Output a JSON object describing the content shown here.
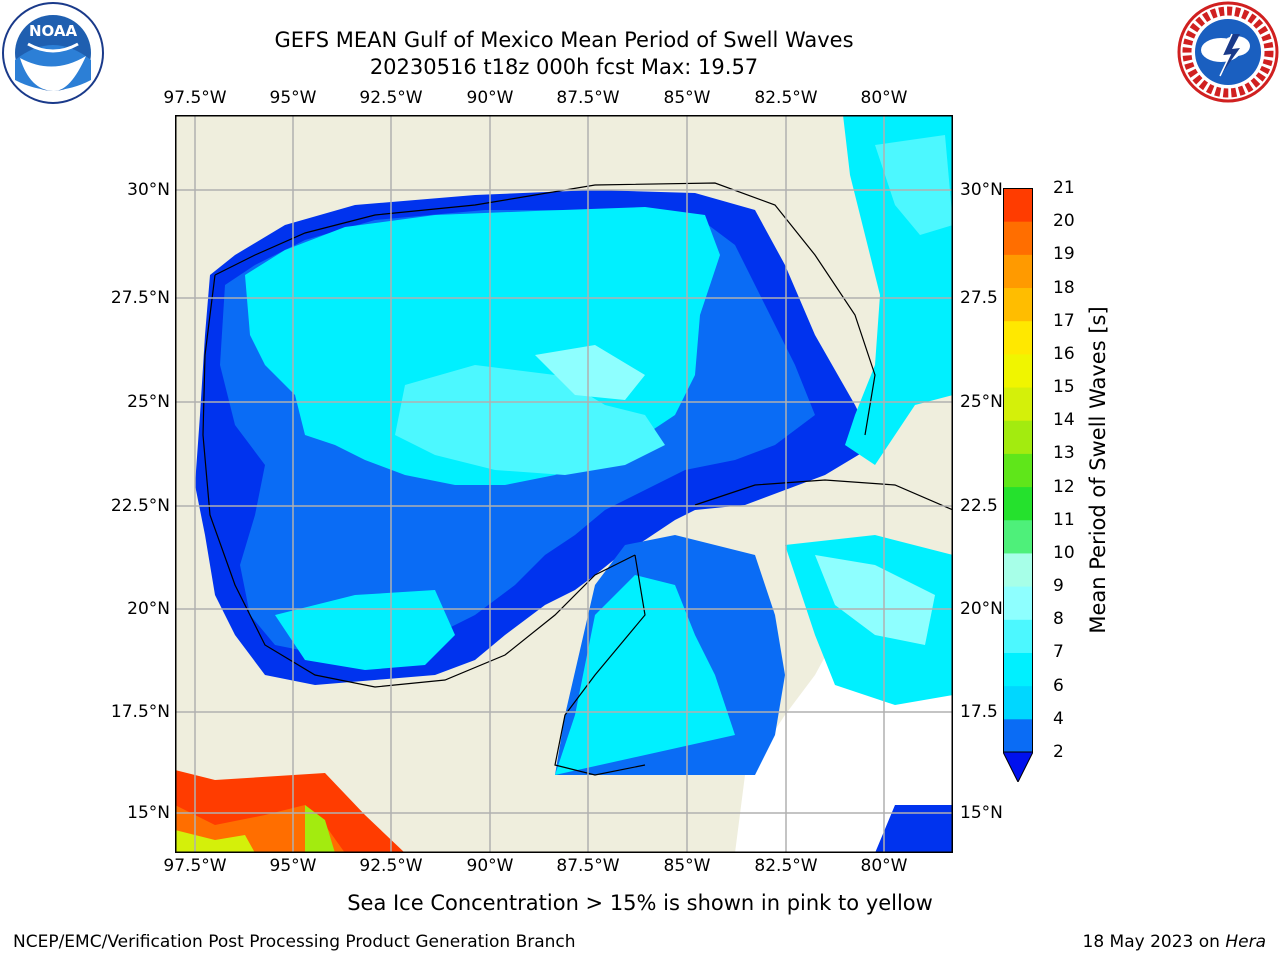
{
  "header": {
    "title_line1": "GEFS MEAN Gulf of Mexico Mean Period of Swell Waves",
    "title_line2": "20230516 t18z 000h fcst   Max: 19.57"
  },
  "logos": {
    "noaa": {
      "text": "NOAA",
      "ring_text": "NATIONAL OCEANIC AND ATMOSPHERIC ADMINISTRATION · U.S. DEPARTMENT OF COMMERCE"
    },
    "nws": {
      "ring_text": "NATIONAL WEATHER SERVICE"
    }
  },
  "map": {
    "lon_labels": [
      "97.5°W",
      "95°W",
      "92.5°W",
      "90°W",
      "87.5°W",
      "85°W",
      "82.5°W",
      "80°W"
    ],
    "lat_labels_left": [
      "30°N",
      "27.5°N",
      "25°N",
      "22.5°N",
      "20°N",
      "17.5°N",
      "15°N"
    ],
    "lat_labels_right": [
      "30°N",
      "27.5",
      "25°N",
      "22.5",
      "20°N",
      "17.5",
      "15°N"
    ],
    "colors": {
      "land": "#efeedd",
      "grid": "#b0b0b0",
      "ocean_missing": "#ffffff"
    }
  },
  "colorbar": {
    "title": "Mean Period of Swell Waves [s]",
    "labels": [
      "2",
      "4",
      "6",
      "7",
      "8",
      "9",
      "10",
      "11",
      "12",
      "13",
      "14",
      "15",
      "16",
      "17",
      "18",
      "19",
      "20",
      "21"
    ],
    "colors": [
      "#0a6cf5",
      "#00d7ff",
      "#00f0ff",
      "#4cf8ff",
      "#8effff",
      "#a7ffe8",
      "#4ef07a",
      "#25e12d",
      "#5fe61a",
      "#a3eb0f",
      "#d4f00a",
      "#f0f500",
      "#ffe800",
      "#ffbd00",
      "#ff9a00",
      "#ff6e00",
      "#ff3c00",
      "#ff0000"
    ],
    "underflow_color": "#0011ee"
  },
  "notes": {
    "ice": "Sea Ice Concentration > 15% is shown in pink to yellow"
  },
  "footer": {
    "left": "NCEP/EMC/Verification Post Processing Product Generation Branch",
    "right_prefix": "18 May 2023 on ",
    "right_host": "Hera"
  }
}
